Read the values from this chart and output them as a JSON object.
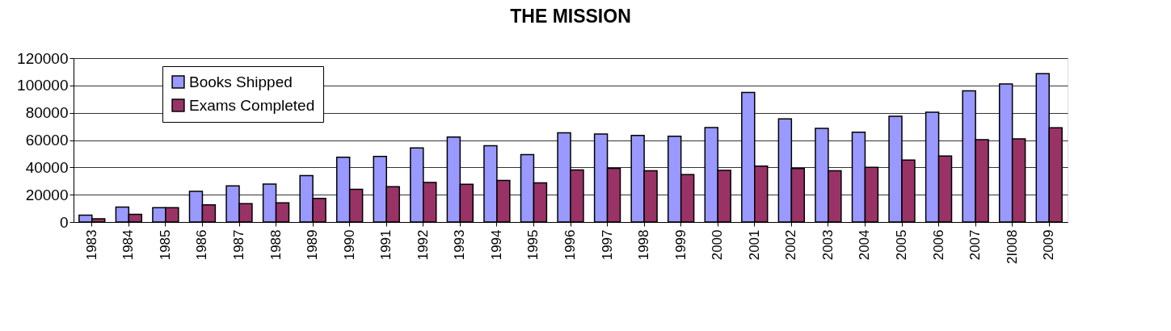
{
  "chart_data": {
    "type": "bar",
    "title": "THE MISSION",
    "categories": [
      "1983",
      "1984",
      "1985",
      "1986",
      "1987",
      "1988",
      "1989",
      "1990",
      "1991",
      "1992",
      "1993",
      "1994",
      "1995",
      "1996",
      "1997",
      "1998",
      "1999",
      "2000",
      "2001",
      "2002",
      "2003",
      "2004",
      "2005",
      "2006",
      "2007",
      "2I008",
      "2009"
    ],
    "series": [
      {
        "name": "Books Shipped",
        "color": "#9999ff",
        "values": [
          5000,
          10900,
          10500,
          22400,
          26400,
          27800,
          34000,
          47500,
          48100,
          54200,
          62200,
          55800,
          49300,
          65300,
          64500,
          63400,
          62800,
          69100,
          94900,
          75500,
          68600,
          65800,
          77400,
          80400,
          96000,
          101100,
          108600
        ]
      },
      {
        "name": "Exams Completed",
        "color": "#993366",
        "values": [
          2400,
          5600,
          10500,
          12500,
          13500,
          14100,
          17300,
          24000,
          25800,
          29000,
          27600,
          30400,
          28600,
          38100,
          39300,
          37500,
          34800,
          37900,
          40900,
          39200,
          37600,
          40000,
          45300,
          48300,
          60300,
          60900,
          69000
        ]
      }
    ],
    "ylim": [
      0,
      120000
    ],
    "yticks": [
      0,
      20000,
      40000,
      60000,
      80000,
      100000,
      120000
    ],
    "grid": "y",
    "legend": "top left"
  }
}
